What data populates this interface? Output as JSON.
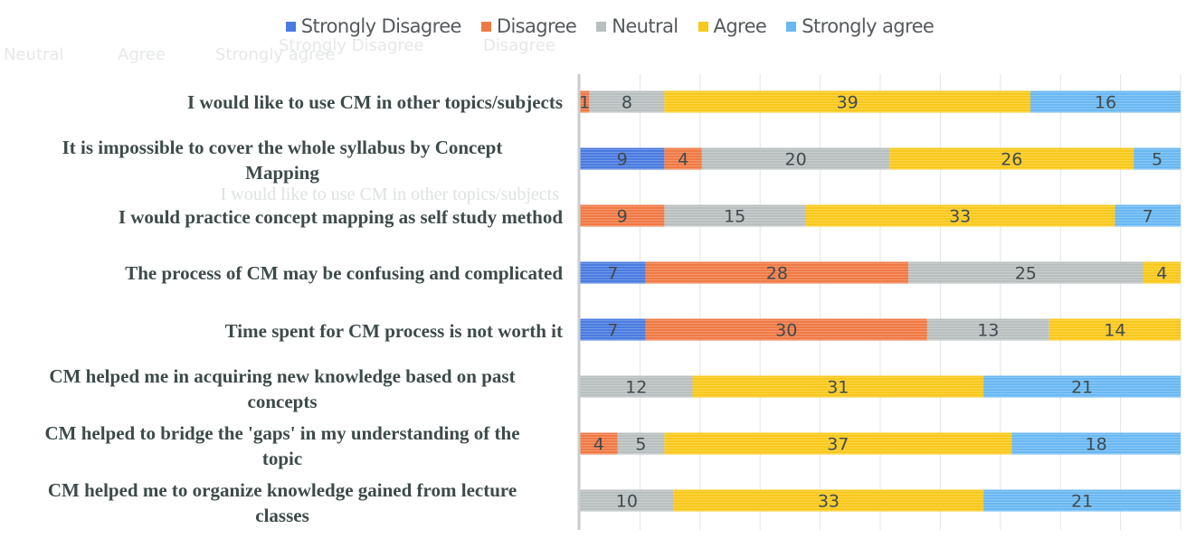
{
  "chart_data": {
    "type": "bar",
    "orientation": "horizontal",
    "stacked": "percent",
    "title": "",
    "xlabel": "",
    "ylabel": "",
    "xlim": [
      0,
      64
    ],
    "grid": true,
    "legend_position": "top",
    "categories": [
      "I would like to use CM in other topics/subjects",
      "It is impossible to cover the whole syllabus by Concept Mapping",
      "I would practice concept mapping as self study method",
      "The process of CM may be confusing and complicated",
      "Time spent for CM process is not worth it",
      "CM helped me in acquiring new knowledge based on past concepts",
      "CM helped to bridge the 'gaps' in my understanding of the topic",
      "CM helped me to organize knowledge gained from lecture classes"
    ],
    "series": [
      {
        "name": "Strongly Disagree",
        "color": "#4a7be0",
        "values": [
          0,
          9,
          0,
          7,
          7,
          0,
          0,
          0
        ]
      },
      {
        "name": "Disagree",
        "color": "#f07a45",
        "values": [
          1,
          4,
          9,
          28,
          30,
          0,
          4,
          0
        ]
      },
      {
        "name": "Neutral",
        "color": "#b9bfbf",
        "values": [
          8,
          20,
          15,
          25,
          13,
          12,
          5,
          10
        ]
      },
      {
        "name": "Agree",
        "color": "#f9c81a",
        "values": [
          39,
          26,
          33,
          4,
          14,
          31,
          37,
          33
        ]
      },
      {
        "name": "Strongly agree",
        "color": "#69b8f2",
        "values": [
          16,
          5,
          7,
          0,
          0,
          21,
          18,
          21
        ]
      }
    ]
  },
  "legend": {
    "items": [
      {
        "label": "Strongly Disagree",
        "color": "#4a7be0"
      },
      {
        "label": "Disagree",
        "color": "#f07a45"
      },
      {
        "label": "Neutral",
        "color": "#b9bfbf"
      },
      {
        "label": "Agree",
        "color": "#f9c81a"
      },
      {
        "label": "Strongly agree",
        "color": "#69b8f2"
      }
    ]
  },
  "labels": [
    {
      "line1": "I would like to use CM in other topics/subjects",
      "line2": ""
    },
    {
      "line1": "It is impossible to cover the whole syllabus by Concept",
      "line2": "Mapping"
    },
    {
      "line1": "I would practice concept mapping as self study method",
      "line2": ""
    },
    {
      "line1": "The process of CM may be confusing and complicated",
      "line2": ""
    },
    {
      "line1": "Time spent for CM process is not worth it",
      "line2": ""
    },
    {
      "line1": "CM helped me in acquiring new knowledge based on past",
      "line2": "concepts"
    },
    {
      "line1": "CM helped to bridge the 'gaps' in my understanding of the",
      "line2": "topic"
    },
    {
      "line1": "CM helped me to organize knowledge gained from lecture",
      "line2": "classes"
    }
  ],
  "ghost": {
    "row1": [
      "Strongly Disagree",
      "Disagree"
    ],
    "row2": [
      "Neutral",
      "Agree",
      "Strongly agree"
    ],
    "overlay": "I would like to use CM in other topics/subjects"
  }
}
